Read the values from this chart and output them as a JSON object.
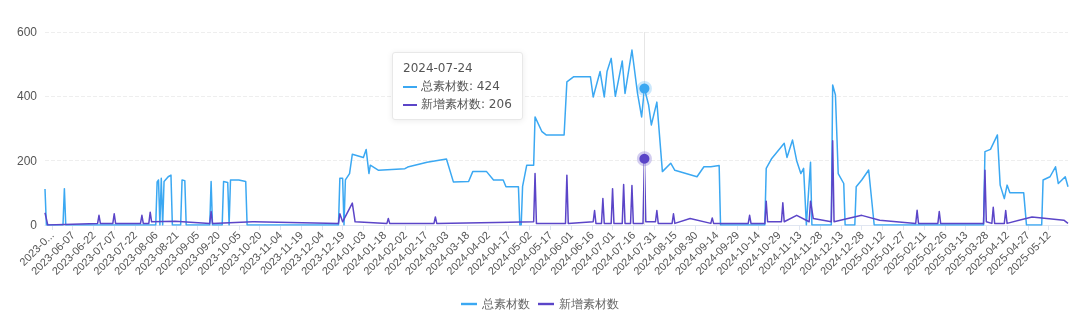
{
  "chart_data": {
    "type": "line",
    "xlim": [
      "2023-05-18",
      "2025-05-26"
    ],
    "ylim": [
      0,
      600
    ],
    "yticks": [
      0,
      200,
      400,
      600
    ],
    "grid": "y",
    "legend": "bottom",
    "marker": "none",
    "line_style": "solid",
    "xticks": [
      {
        "value": "2023-05-23",
        "label": "2023-0..."
      },
      "2023-06-07",
      "2023-06-22",
      "2023-07-07",
      "2023-07-22",
      "2023-08-06",
      "2023-08-21",
      "2023-09-05",
      "2023-09-20",
      "2023-10-05",
      "2023-10-20",
      "2023-11-04",
      "2023-11-19",
      "2023-12-04",
      "2023-12-19",
      "2024-01-03",
      "2024-01-18",
      "2024-02-02",
      "2024-02-17",
      "2024-03-03",
      "2024-03-18",
      "2024-04-02",
      "2024-04-17",
      "2024-05-02",
      "2024-05-17",
      "2024-06-01",
      "2024-06-16",
      "2024-07-01",
      "2024-07-16",
      "2024-07-31",
      "2024-08-15",
      "2024-08-30",
      "2024-09-14",
      "2024-09-29",
      "2024-10-14",
      "2024-10-29",
      "2024-11-13",
      "2024-11-28",
      "2024-12-13",
      "2024-12-28",
      "2025-01-12",
      "2025-01-27",
      "2025-02-11",
      "2025-02-26",
      "2025-03-13",
      "2025-03-28",
      "2025-04-12",
      "2025-04-27",
      "2025-05-12"
    ],
    "ref_lines": [
      {
        "axis": "x",
        "value": "2024-07-24",
        "label": null,
        "color": "#e6e6e6"
      }
    ],
    "annotations": [
      "2024-07-24",
      "总素材数: 424",
      "新增素材数: 206"
    ],
    "series": [
      {
        "name": "总素材数",
        "color": "#3ba8f2",
        "x": [
          "2023-05-18",
          "2023-05-19",
          "2023-05-31",
          "2023-06-01",
          "2023-06-02",
          "2023-08-06",
          "2023-08-07",
          "2023-08-08",
          "2023-08-09",
          "2023-08-10",
          "2023-08-11",
          "2023-08-12",
          "2023-08-15",
          "2023-08-17",
          "2023-08-18",
          "2023-08-24",
          "2023-08-25",
          "2023-08-27",
          "2023-08-28",
          "2023-09-14",
          "2023-09-15",
          "2023-09-16",
          "2023-09-23",
          "2023-09-24",
          "2023-09-27",
          "2023-09-28",
          "2023-09-29",
          "2023-10-05",
          "2023-10-10",
          "2023-10-11",
          "2023-12-16",
          "2023-12-17",
          "2023-12-19",
          "2023-12-20",
          "2023-12-21",
          "2023-12-24",
          "2023-12-26",
          "2024-01-03",
          "2024-01-05",
          "2024-01-07",
          "2024-01-08",
          "2024-01-14",
          "2024-02-02",
          "2024-02-04",
          "2024-02-18",
          "2024-03-03",
          "2024-03-08",
          "2024-03-19",
          "2024-03-22",
          "2024-04-01",
          "2024-04-06",
          "2024-04-13",
          "2024-04-15",
          "2024-04-24",
          "2024-04-25",
          "2024-04-26",
          "2024-04-27",
          "2024-04-30",
          "2024-05-05",
          "2024-05-06",
          "2024-05-11",
          "2024-05-14",
          "2024-05-27",
          "2024-05-29",
          "2024-06-03",
          "2024-06-15",
          "2024-06-17",
          "2024-06-22",
          "2024-06-25",
          "2024-06-27",
          "2024-06-30",
          "2024-07-03",
          "2024-07-08",
          "2024-07-10",
          "2024-07-15",
          "2024-07-19",
          "2024-07-22",
          "2024-07-24",
          "2024-07-27",
          "2024-07-29",
          "2024-08-02",
          "2024-08-06",
          "2024-08-12",
          "2024-08-15",
          "2024-08-31",
          "2024-09-05",
          "2024-09-10",
          "2024-09-16",
          "2024-09-17",
          "2024-10-19",
          "2024-10-20",
          "2024-10-24",
          "2024-11-02",
          "2024-11-04",
          "2024-11-08",
          "2024-11-11",
          "2024-11-14",
          "2024-11-16",
          "2024-11-18",
          "2024-11-21",
          "2024-11-22",
          "2024-12-06",
          "2024-12-07",
          "2024-12-09",
          "2024-12-11",
          "2024-12-15",
          "2024-12-16",
          "2024-12-23",
          "2024-12-24",
          "2024-12-28",
          "2025-01-02",
          "2025-01-06",
          "2025-03-26",
          "2025-03-27",
          "2025-03-31",
          "2025-04-05",
          "2025-04-07",
          "2025-04-10",
          "2025-04-12",
          "2025-04-14",
          "2025-04-24",
          "2025-04-26",
          "2025-05-07",
          "2025-05-08",
          "2025-05-13",
          "2025-05-17",
          "2025-05-19",
          "2025-05-24",
          "2025-05-26"
        ],
        "values": [
          112,
          0,
          0,
          113,
          0,
          0,
          134,
          140,
          0,
          145,
          0,
          135,
          150,
          155,
          0,
          0,
          140,
          138,
          0,
          0,
          135,
          0,
          0,
          135,
          132,
          0,
          140,
          140,
          135,
          0,
          0,
          145,
          145,
          0,
          140,
          160,
          220,
          210,
          235,
          160,
          186,
          170,
          175,
          180,
          195,
          205,
          134,
          135,
          166,
          166,
          140,
          140,
          119,
          119,
          0,
          0,
          120,
          186,
          186,
          336,
          290,
          280,
          280,
          445,
          461,
          461,
          398,
          477,
          398,
          477,
          518,
          400,
          510,
          409,
          544,
          410,
          336,
          424,
          374,
          311,
          382,
          166,
          192,
          170,
          150,
          181,
          181,
          185,
          0,
          0,
          176,
          207,
          254,
          210,
          264,
          200,
          160,
          176,
          0,
          195,
          0,
          0,
          435,
          404,
          160,
          129,
          0,
          0,
          119,
          140,
          171,
          0,
          0,
          228,
          235,
          280,
          124,
          82,
          124,
          100,
          100,
          0,
          0,
          140,
          150,
          181,
          129,
          150,
          119
        ]
      },
      {
        "name": "新增素材数",
        "color": "#5b45c8",
        "x": [
          "2023-05-18",
          "2023-05-20",
          "2023-06-25",
          "2023-06-26",
          "2023-06-27",
          "2023-07-06",
          "2023-07-07",
          "2023-07-08",
          "2023-07-26",
          "2023-07-27",
          "2023-07-28",
          "2023-08-01",
          "2023-08-02",
          "2023-08-03",
          "2023-08-20",
          "2023-09-14",
          "2023-09-15",
          "2023-09-16",
          "2023-10-15",
          "2023-12-16",
          "2023-12-17",
          "2023-12-19",
          "2023-12-26",
          "2023-12-28",
          "2024-01-20",
          "2024-01-21",
          "2024-01-22",
          "2024-02-23",
          "2024-02-24",
          "2024-02-25",
          "2024-05-05",
          "2024-05-06",
          "2024-05-07",
          "2024-05-28",
          "2024-05-29",
          "2024-05-30",
          "2024-06-17",
          "2024-06-18",
          "2024-06-19",
          "2024-06-23",
          "2024-06-24",
          "2024-06-25",
          "2024-06-30",
          "2024-07-01",
          "2024-07-02",
          "2024-07-08",
          "2024-07-09",
          "2024-07-10",
          "2024-07-14",
          "2024-07-15",
          "2024-07-16",
          "2024-07-23",
          "2024-07-24",
          "2024-07-25",
          "2024-08-01",
          "2024-08-02",
          "2024-08-03",
          "2024-08-13",
          "2024-08-14",
          "2024-08-15",
          "2024-08-26",
          "2024-09-10",
          "2024-09-11",
          "2024-09-12",
          "2024-10-07",
          "2024-10-08",
          "2024-10-09",
          "2024-10-19",
          "2024-10-20",
          "2024-10-21",
          "2024-10-31",
          "2024-11-01",
          "2024-11-02",
          "2024-11-11",
          "2024-11-20",
          "2024-11-21",
          "2024-11-23",
          "2024-12-06",
          "2024-12-07",
          "2024-12-08",
          "2024-12-28",
          "2025-01-10",
          "2025-02-05",
          "2025-02-06",
          "2025-02-07",
          "2025-02-21",
          "2025-02-22",
          "2025-02-23",
          "2025-03-26",
          "2025-03-27",
          "2025-03-28",
          "2025-04-01",
          "2025-04-02",
          "2025-04-03",
          "2025-04-10",
          "2025-04-11",
          "2025-04-12",
          "2025-04-30",
          "2025-05-23",
          "2025-05-26"
        ],
        "values": [
          38,
          0,
          5,
          30,
          5,
          5,
          35,
          5,
          5,
          30,
          5,
          5,
          40,
          10,
          12,
          5,
          42,
          5,
          10,
          5,
          35,
          10,
          68,
          10,
          5,
          20,
          5,
          5,
          25,
          5,
          10,
          160,
          5,
          5,
          155,
          5,
          10,
          45,
          5,
          5,
          82,
          5,
          5,
          113,
          5,
          5,
          126,
          5,
          5,
          123,
          5,
          5,
          206,
          10,
          10,
          45,
          5,
          5,
          35,
          5,
          20,
          5,
          22,
          5,
          5,
          30,
          5,
          5,
          74,
          10,
          10,
          69,
          10,
          30,
          10,
          74,
          20,
          10,
          262,
          10,
          30,
          15,
          5,
          46,
          5,
          5,
          42,
          5,
          5,
          170,
          10,
          5,
          55,
          5,
          5,
          45,
          5,
          25,
          15,
          5
        ]
      }
    ]
  }
}
